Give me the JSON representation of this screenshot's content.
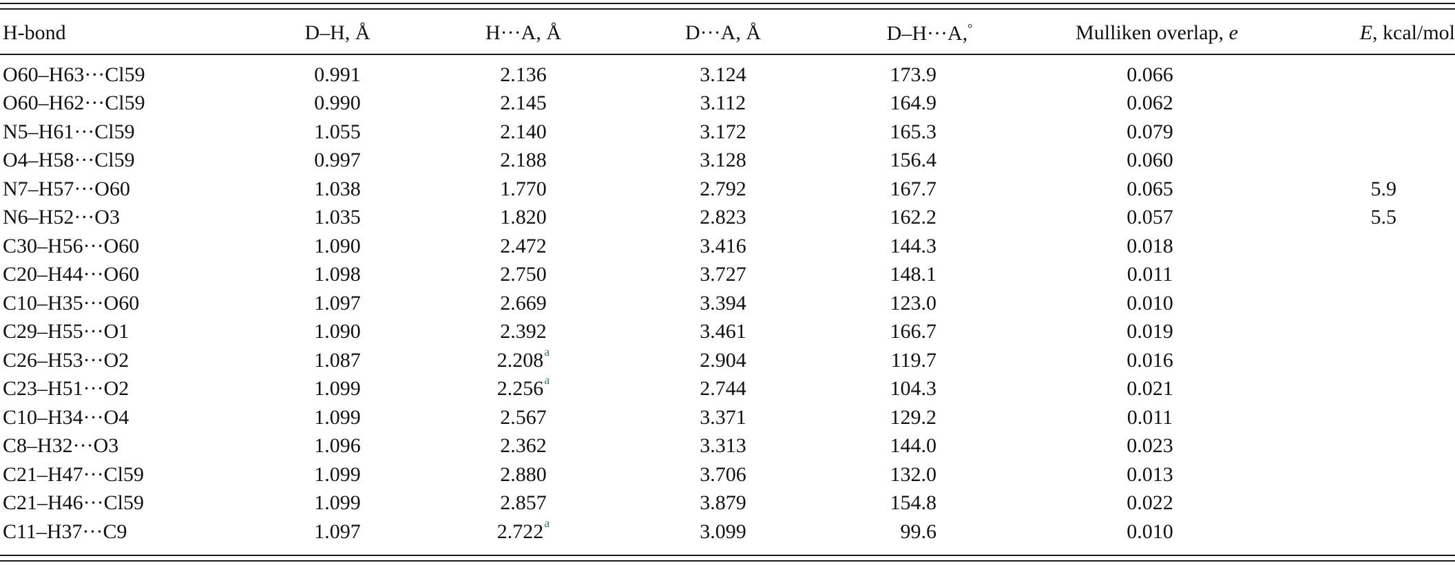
{
  "table": {
    "headers": {
      "hbond": "H-bond",
      "dh": "D–H, Å",
      "ha": "H···A, Å",
      "da": "D···A, Å",
      "angle": "D–H···A,",
      "angle_unit": "°",
      "mulliken": "Mulliken overlap,",
      "mulliken_unit": "e",
      "energy_symbol": "E",
      "energy_unit": ", kcal/mol"
    },
    "rows": [
      {
        "hbond": "O60–H63···Cl59",
        "dh": "0.991",
        "ha": "2.136",
        "ha_note": "",
        "da": "3.124",
        "angle": "173.9",
        "mulliken": "0.066",
        "energy": ""
      },
      {
        "hbond": "O60–H62···Cl59",
        "dh": "0.990",
        "ha": "2.145",
        "ha_note": "",
        "da": "3.112",
        "angle": "164.9",
        "mulliken": "0.062",
        "energy": ""
      },
      {
        "hbond": "N5–H61···Cl59",
        "dh": "1.055",
        "ha": "2.140",
        "ha_note": "",
        "da": "3.172",
        "angle": "165.3",
        "mulliken": "0.079",
        "energy": ""
      },
      {
        "hbond": "O4–H58···Cl59",
        "dh": "0.997",
        "ha": "2.188",
        "ha_note": "",
        "da": "3.128",
        "angle": "156.4",
        "mulliken": "0.060",
        "energy": ""
      },
      {
        "hbond": "N7–H57···O60",
        "dh": "1.038",
        "ha": "1.770",
        "ha_note": "",
        "da": "2.792",
        "angle": "167.7",
        "mulliken": "0.065",
        "energy": "5.9"
      },
      {
        "hbond": "N6–H52···O3",
        "dh": "1.035",
        "ha": "1.820",
        "ha_note": "",
        "da": "2.823",
        "angle": "162.2",
        "mulliken": "0.057",
        "energy": "5.5"
      },
      {
        "hbond": "C30–H56···O60",
        "dh": "1.090",
        "ha": "2.472",
        "ha_note": "",
        "da": "3.416",
        "angle": "144.3",
        "mulliken": "0.018",
        "energy": ""
      },
      {
        "hbond": "C20–H44···O60",
        "dh": "1.098",
        "ha": "2.750",
        "ha_note": "",
        "da": "3.727",
        "angle": "148.1",
        "mulliken": "0.011",
        "energy": ""
      },
      {
        "hbond": "C10–H35···O60",
        "dh": "1.097",
        "ha": "2.669",
        "ha_note": "",
        "da": "3.394",
        "angle": "123.0",
        "mulliken": "0.010",
        "energy": ""
      },
      {
        "hbond": "C29–H55···O1",
        "dh": "1.090",
        "ha": "2.392",
        "ha_note": "",
        "da": "3.461",
        "angle": "166.7",
        "mulliken": "0.019",
        "energy": ""
      },
      {
        "hbond": "C26–H53···O2",
        "dh": "1.087",
        "ha": "2.208",
        "ha_note": "a",
        "da": "2.904",
        "angle": "119.7",
        "mulliken": "0.016",
        "energy": ""
      },
      {
        "hbond": "C23–H51···O2",
        "dh": "1.099",
        "ha": "2.256",
        "ha_note": "a",
        "da": "2.744",
        "angle": "104.3",
        "mulliken": "0.021",
        "energy": ""
      },
      {
        "hbond": "C10–H34···O4",
        "dh": "1.099",
        "ha": "2.567",
        "ha_note": "",
        "da": "3.371",
        "angle": "129.2",
        "mulliken": "0.011",
        "energy": ""
      },
      {
        "hbond": "C8–H32···O3",
        "dh": "1.096",
        "ha": "2.362",
        "ha_note": "",
        "da": "3.313",
        "angle": "144.0",
        "mulliken": "0.023",
        "energy": ""
      },
      {
        "hbond": "C21–H47···Cl59",
        "dh": "1.099",
        "ha": "2.880",
        "ha_note": "",
        "da": "3.706",
        "angle": "132.0",
        "mulliken": "0.013",
        "energy": ""
      },
      {
        "hbond": "C21–H46···Cl59",
        "dh": "1.099",
        "ha": "2.857",
        "ha_note": "",
        "da": "3.879",
        "angle": "154.8",
        "mulliken": "0.022",
        "energy": ""
      },
      {
        "hbond": "C11–H37···C9",
        "dh": "1.097",
        "ha": "2.722",
        "ha_note": "a",
        "da": "3.099",
        "angle": "99.6",
        "mulliken": "0.010",
        "energy": ""
      }
    ]
  },
  "colors": {
    "rule": "#1a1a1a",
    "footnote_marker": "#3f7a73"
  }
}
